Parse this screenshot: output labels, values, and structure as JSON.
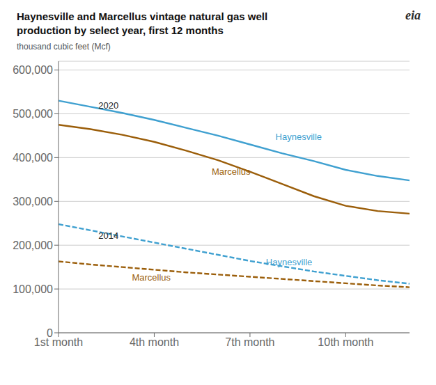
{
  "chart_data": {
    "type": "line",
    "title": "Haynesville and Marcellus vintage natural gas well\nproduction by select year, first 12 months",
    "subtitle": "thousand cubic feet (Mcf)",
    "x": [
      1,
      2,
      3,
      4,
      5,
      6,
      7,
      8,
      9,
      10,
      11,
      12
    ],
    "xlim": [
      1,
      12
    ],
    "xticks": [
      {
        "value": 1,
        "label": "1st month"
      },
      {
        "value": 4,
        "label": "4th month"
      },
      {
        "value": 7,
        "label": "7th month"
      },
      {
        "value": 10,
        "label": "10th month"
      }
    ],
    "ylim": [
      0,
      620000
    ],
    "yticks": [
      0,
      {
        "value": 100000,
        "label": "100,000"
      },
      {
        "value": 200000,
        "label": "200,000"
      },
      {
        "value": 300000,
        "label": "300,000"
      },
      {
        "value": 400000,
        "label": "400,000"
      },
      {
        "value": 500000,
        "label": "500,000"
      },
      {
        "value": 600000,
        "label": "600,000"
      }
    ],
    "grid": true,
    "series": [
      {
        "name": "Haynesville",
        "color": "#3fa0d0",
        "line_style": "solid",
        "values": [
          530000,
          516000,
          502000,
          486000,
          468000,
          450000,
          430000,
          410000,
          392000,
          372000,
          358000,
          348000
        ]
      },
      {
        "name": "Marcellus",
        "color": "#9b5e0a",
        "line_style": "solid",
        "values": [
          475000,
          465000,
          452000,
          436000,
          416000,
          394000,
          368000,
          340000,
          312000,
          290000,
          278000,
          272000
        ]
      },
      {
        "name": "Haynesville",
        "color": "#3fa0d0",
        "line_style": "dashed",
        "values": [
          248000,
          234000,
          220000,
          206000,
          192000,
          178000,
          164000,
          152000,
          140000,
          130000,
          120000,
          112000
        ]
      },
      {
        "name": "Marcellus",
        "color": "#9b5e0a",
        "line_style": "dashed",
        "values": [
          163000,
          156000,
          150000,
          144000,
          138000,
          133000,
          128000,
          123000,
          118000,
          113000,
          108000,
          104000
        ]
      }
    ],
    "annotations": [
      {
        "text": "2020",
        "x": 2.25,
        "y": 519000
      },
      {
        "text": "2014",
        "x": 2.25,
        "y": 222000
      },
      {
        "text": "Haynesville",
        "x": 7.8,
        "y": 448000,
        "color": "#3fa0d0"
      },
      {
        "text": "Marcellus",
        "x": 5.8,
        "y": 368000,
        "color": "#9b5e0a"
      },
      {
        "text": "Haynesville",
        "x": 7.5,
        "y": 162000,
        "color": "#3fa0d0"
      },
      {
        "text": "Marcellus",
        "x": 3.3,
        "y": 127000,
        "color": "#9b5e0a"
      },
      {
        "text": "eia"
      }
    ]
  }
}
